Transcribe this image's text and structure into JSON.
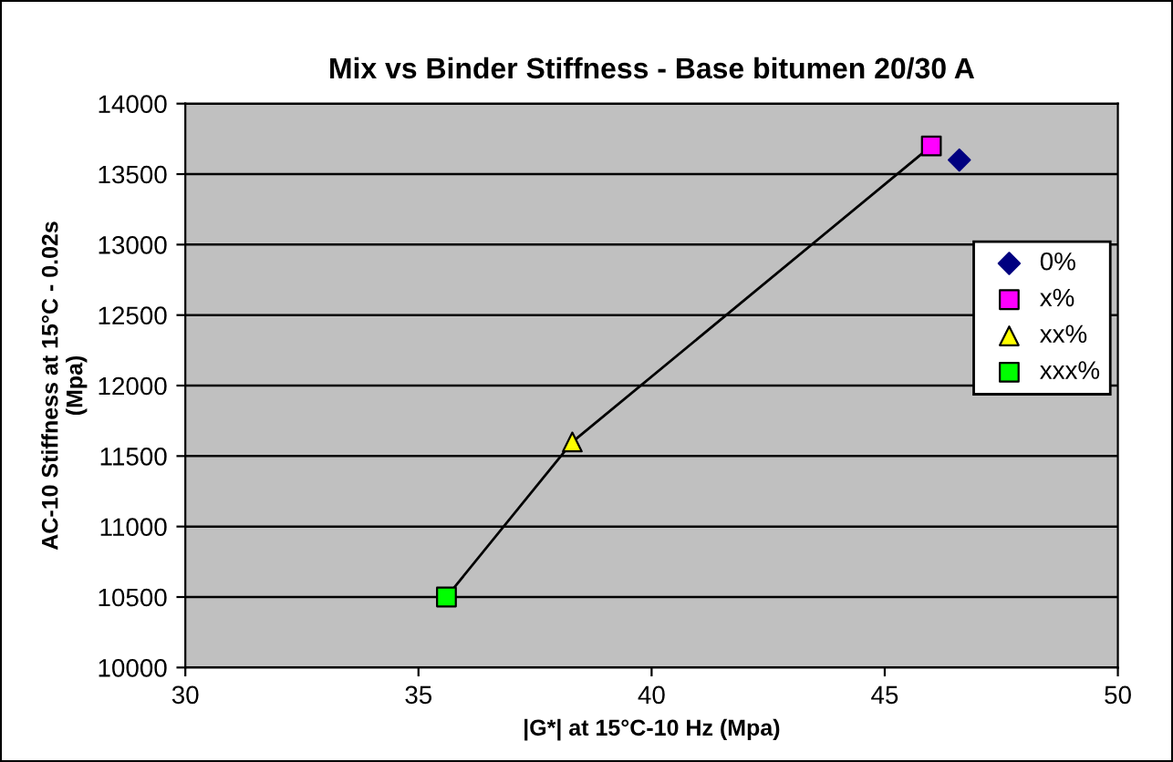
{
  "chart_data": {
    "type": "scatter",
    "title": "Mix vs Binder Stiffness - Base bitumen 20/30 A",
    "xlabel": "|G*| at 15°C-10 Hz (Mpa)",
    "ylabel": "AC-10 Stiffness at 15°C - 0.02s\n(Mpa)",
    "xlim": [
      30,
      50
    ],
    "xticks": [
      30,
      35,
      40,
      45,
      50
    ],
    "ylim": [
      10000,
      14000
    ],
    "yticks": [
      10000,
      10500,
      11000,
      11500,
      12000,
      12500,
      13000,
      13500,
      14000
    ],
    "grid": "y",
    "legend": "right",
    "series": [
      {
        "type": "line",
        "color": "#000000",
        "x": [
          35.6,
          38.3,
          46.0
        ],
        "values": [
          10500,
          11600,
          13700
        ],
        "marker": "none"
      },
      {
        "name": "0%",
        "color": "#000080",
        "x": [
          46.6
        ],
        "values": [
          13600
        ],
        "marker": "diamond"
      },
      {
        "name": "x%",
        "color": "#ff00ff",
        "x": [
          46.0
        ],
        "values": [
          13700
        ],
        "marker": "square"
      },
      {
        "name": "xx%",
        "color": "#ffff00",
        "x": [
          38.3
        ],
        "values": [
          11600
        ],
        "marker": "triangle"
      },
      {
        "name": "xxx%",
        "color": "#00ff00",
        "x": [
          35.6
        ],
        "values": [
          10500
        ],
        "marker": "square"
      }
    ]
  }
}
